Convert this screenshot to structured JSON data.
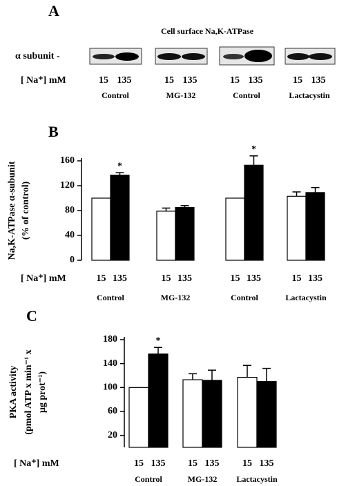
{
  "panel_a": {
    "label": "A",
    "title": "Cell surface Na,K-ATPase",
    "row_label": "α subunit -",
    "x_prefix": "[ Na⁺]  mM",
    "lanes": [
      "15",
      "135"
    ],
    "groups": [
      "Control",
      "MG-132",
      "Control",
      "Lactacystin"
    ]
  },
  "chart_data": [
    {
      "type": "bar",
      "label": "B",
      "ylabel": [
        "Na,K-ATPase α-subunit",
        "(% of control)"
      ],
      "x_prefix": "[ Na⁺]  mM",
      "categories": [
        "Control",
        "MG-132",
        "Control",
        "Lactacystin"
      ],
      "series": [
        {
          "name": "15",
          "color": "#ffffff",
          "values": [
            100,
            79,
            100,
            103
          ],
          "errors": [
            0,
            5,
            0,
            7
          ],
          "annotations": [
            null,
            null,
            null,
            null
          ]
        },
        {
          "name": "135",
          "color": "#000000",
          "values": [
            137,
            85,
            153,
            109
          ],
          "errors": [
            4,
            3,
            15,
            8
          ],
          "annotations": [
            "*",
            null,
            "*",
            null
          ]
        }
      ],
      "ylim": [
        0,
        160
      ],
      "yticks": [
        0,
        40,
        80,
        120,
        160
      ]
    },
    {
      "type": "bar",
      "label": "C",
      "ylabel": [
        "PKA activity",
        "(pmol ATP x min⁻¹ x",
        "μg prot⁻¹)"
      ],
      "x_prefix": "[ Na⁺]  mM",
      "categories": [
        "Control",
        "MG-132",
        "Lactacystin"
      ],
      "series": [
        {
          "name": "15",
          "color": "#ffffff",
          "values": [
            100,
            113,
            117
          ],
          "errors": [
            0,
            10,
            20
          ],
          "annotations": [
            null,
            null,
            null
          ]
        },
        {
          "name": "135",
          "color": "#000000",
          "values": [
            156,
            112,
            110
          ],
          "errors": [
            11,
            17,
            22
          ],
          "annotations": [
            "*",
            null,
            null
          ]
        }
      ],
      "ylim": [
        0,
        180
      ],
      "yticks": [
        20,
        60,
        100,
        140,
        180
      ]
    }
  ]
}
